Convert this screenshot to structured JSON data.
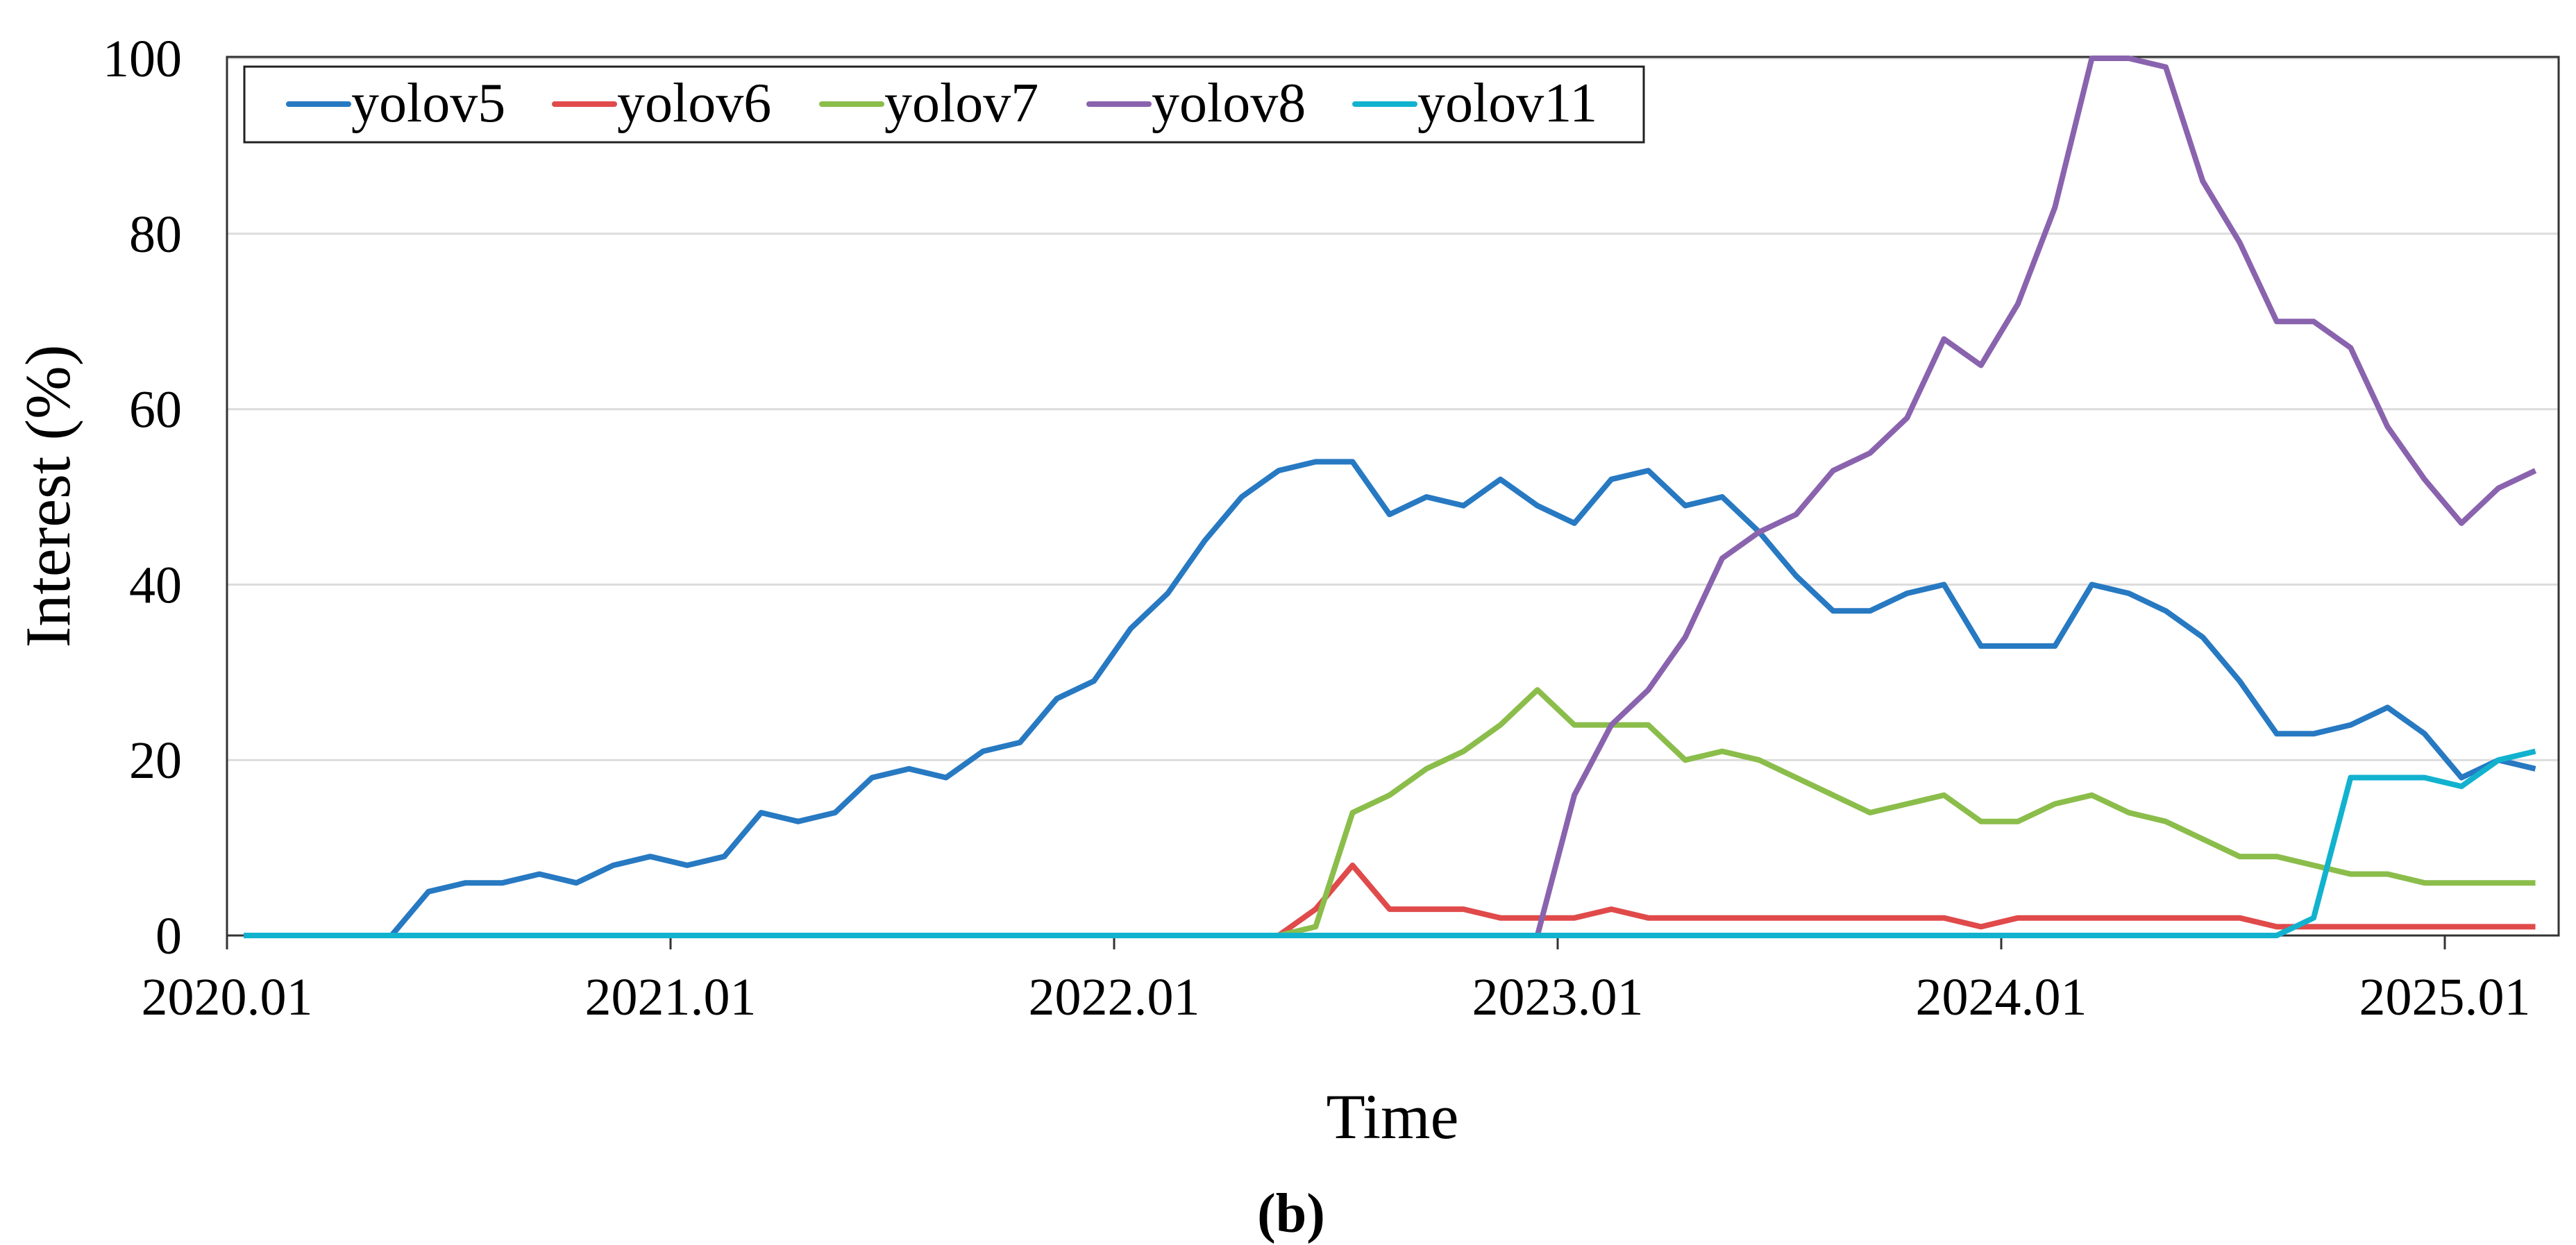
{
  "caption": "(b)",
  "chart_data": {
    "type": "line",
    "xlabel": "Time",
    "ylabel": "Interest (%)",
    "ylim": [
      0,
      100
    ],
    "yticks": [
      "0",
      "20",
      "40",
      "60",
      "80",
      "100"
    ],
    "xticks": [
      "2020.01",
      "2021.01",
      "2022.01",
      "2023.01",
      "2024.01",
      "2025.01"
    ],
    "x_start": "2020.01",
    "x_step": "monthly",
    "grid": "horizontal",
    "legend_position": "top-left",
    "series": [
      {
        "name": "yolov5",
        "color": "#2779C2",
        "values": [
          0,
          0,
          0,
          0,
          0,
          5,
          6,
          6,
          7,
          6,
          8,
          9,
          8,
          9,
          14,
          13,
          14,
          18,
          19,
          18,
          21,
          22,
          27,
          29,
          35,
          39,
          45,
          50,
          53,
          54,
          54,
          48,
          50,
          49,
          52,
          49,
          47,
          52,
          53,
          49,
          50,
          46,
          41,
          37,
          37,
          39,
          40,
          33,
          33,
          33,
          40,
          39,
          37,
          34,
          29,
          23,
          23,
          24,
          26,
          23,
          18,
          20,
          19
        ]
      },
      {
        "name": "yolov6",
        "color": "#E04A4A",
        "values": [
          0,
          0,
          0,
          0,
          0,
          0,
          0,
          0,
          0,
          0,
          0,
          0,
          0,
          0,
          0,
          0,
          0,
          0,
          0,
          0,
          0,
          0,
          0,
          0,
          0,
          0,
          0,
          0,
          0,
          3,
          8,
          3,
          3,
          3,
          2,
          2,
          2,
          3,
          2,
          2,
          2,
          2,
          2,
          2,
          2,
          2,
          2,
          1,
          2,
          2,
          2,
          2,
          2,
          2,
          2,
          1,
          1,
          1,
          1,
          1,
          1,
          1,
          1
        ]
      },
      {
        "name": "yolov7",
        "color": "#8BBD4B",
        "values": [
          0,
          0,
          0,
          0,
          0,
          0,
          0,
          0,
          0,
          0,
          0,
          0,
          0,
          0,
          0,
          0,
          0,
          0,
          0,
          0,
          0,
          0,
          0,
          0,
          0,
          0,
          0,
          0,
          0,
          1,
          14,
          16,
          19,
          21,
          24,
          28,
          24,
          24,
          24,
          20,
          21,
          20,
          18,
          16,
          14,
          15,
          16,
          13,
          13,
          15,
          16,
          14,
          13,
          11,
          9,
          9,
          8,
          7,
          7,
          6,
          6,
          6,
          6
        ]
      },
      {
        "name": "yolov8",
        "color": "#8A63AE",
        "values": [
          0,
          0,
          0,
          0,
          0,
          0,
          0,
          0,
          0,
          0,
          0,
          0,
          0,
          0,
          0,
          0,
          0,
          0,
          0,
          0,
          0,
          0,
          0,
          0,
          0,
          0,
          0,
          0,
          0,
          0,
          0,
          0,
          0,
          0,
          0,
          0,
          16,
          24,
          28,
          34,
          43,
          46,
          48,
          53,
          55,
          59,
          68,
          65,
          72,
          83,
          100,
          100,
          99,
          86,
          79,
          70,
          70,
          67,
          58,
          52,
          47,
          51,
          53
        ]
      },
      {
        "name": "yolov11",
        "color": "#12B2CF",
        "values": [
          0,
          0,
          0,
          0,
          0,
          0,
          0,
          0,
          0,
          0,
          0,
          0,
          0,
          0,
          0,
          0,
          0,
          0,
          0,
          0,
          0,
          0,
          0,
          0,
          0,
          0,
          0,
          0,
          0,
          0,
          0,
          0,
          0,
          0,
          0,
          0,
          0,
          0,
          0,
          0,
          0,
          0,
          0,
          0,
          0,
          0,
          0,
          0,
          0,
          0,
          0,
          0,
          0,
          0,
          0,
          0,
          2,
          18,
          18,
          18,
          17,
          20,
          21
        ]
      }
    ]
  }
}
